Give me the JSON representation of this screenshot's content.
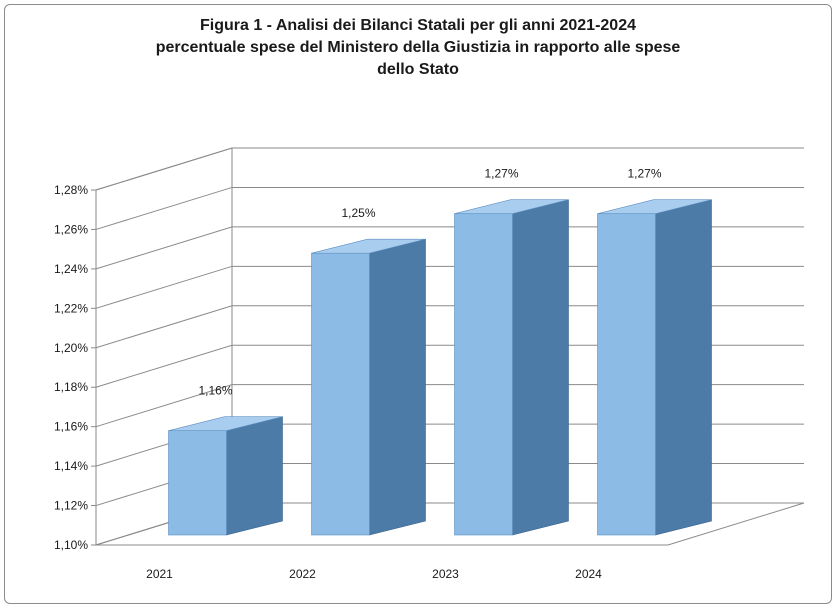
{
  "chart_data": {
    "type": "bar",
    "title_lines": [
      "Figura 1 - Analisi dei Bilanci Statali per gli anni 2021-2024",
      "percentuale spese del Ministero della Giustizia in rapporto alle spese",
      "dello Stato"
    ],
    "categories": [
      "2021",
      "2022",
      "2023",
      "2024"
    ],
    "values": [
      1.16,
      1.25,
      1.27,
      1.27
    ],
    "data_labels": [
      "1,16%",
      "1,25%",
      "1,27%",
      "1,27%"
    ],
    "yticks": [
      "1,10%",
      "1,12%",
      "1,14%",
      "1,16%",
      "1,18%",
      "1,20%",
      "1,22%",
      "1,24%",
      "1,26%",
      "1,28%"
    ],
    "ylim": [
      1.1,
      1.28
    ],
    "xlabel": "",
    "ylabel": "",
    "grid": true,
    "style": "3d-column",
    "colors": {
      "bar_front": "#8cbbe6",
      "bar_side": "#4c7ba8",
      "bar_top": "#a9cdef",
      "grid": "#8a8a8a"
    }
  }
}
